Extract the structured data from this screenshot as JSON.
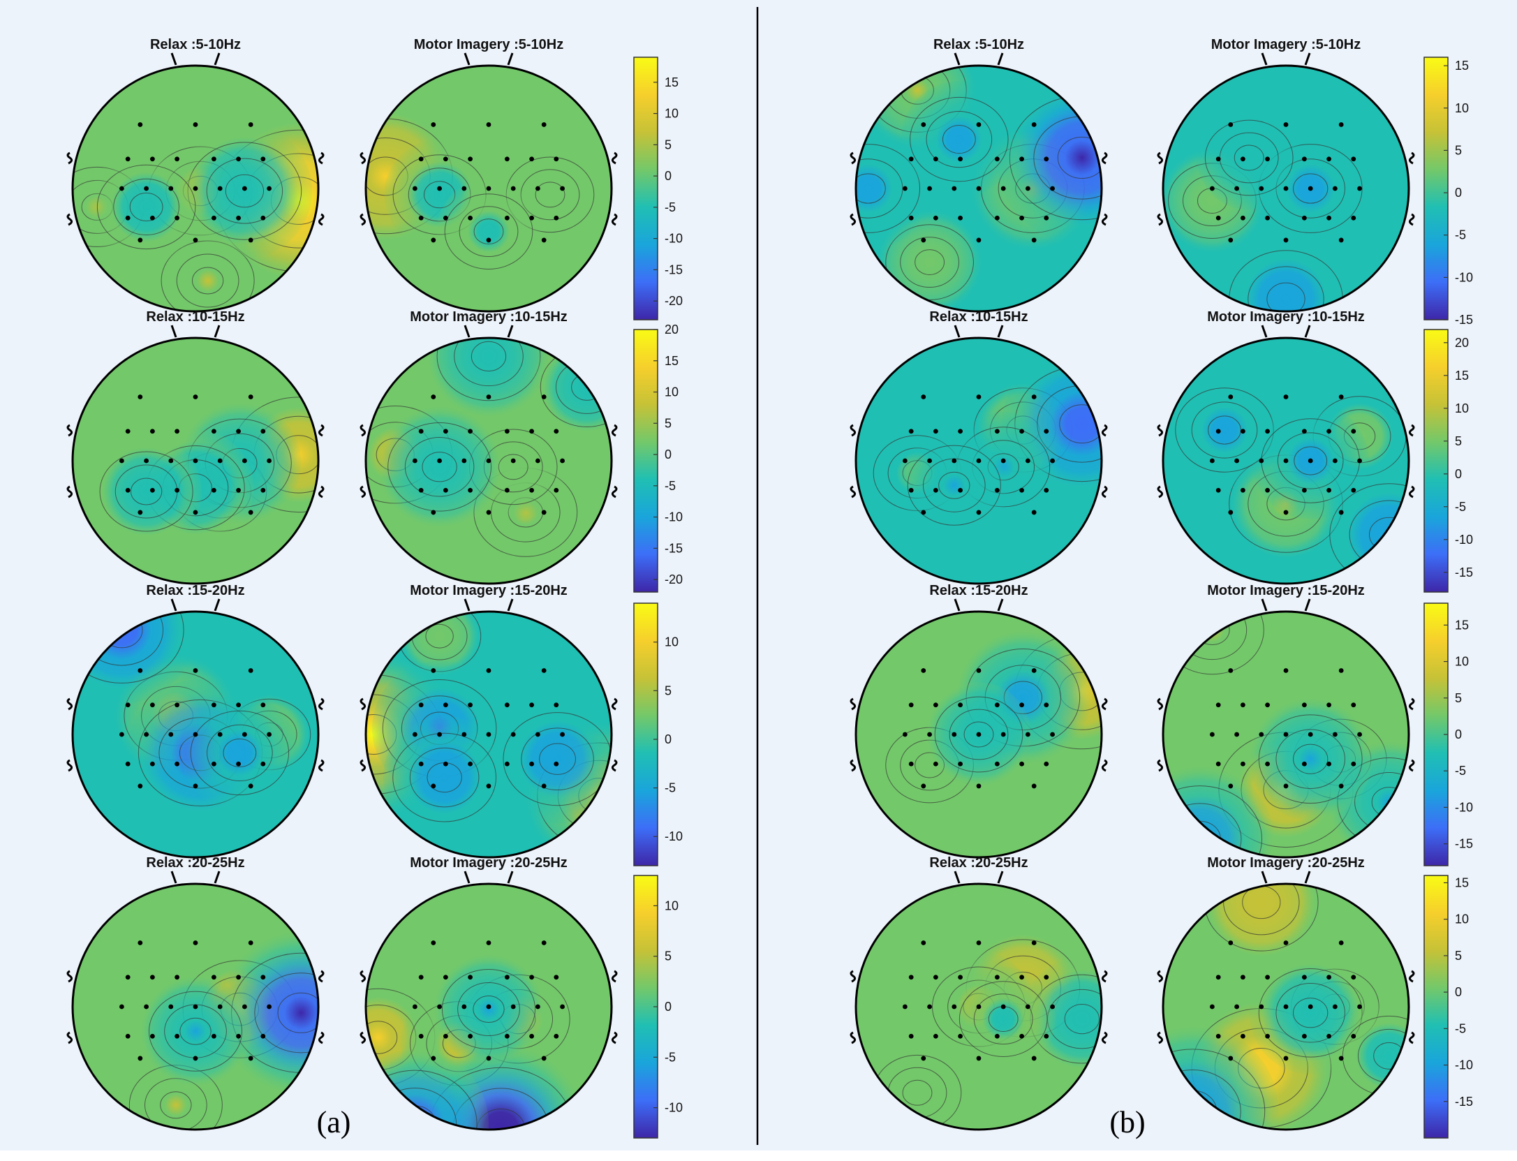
{
  "chart_data": {
    "type": "heatmap",
    "description_kind": "EEG scalp topographic maps",
    "panels": [
      {
        "label": "(a)",
        "rows": [
          {
            "band": "5-10Hz",
            "maps": [
              {
                "title": "Relax :5-10Hz",
                "hot": [
                  {
                    "u": 0.92,
                    "v": 0.1,
                    "val": 18
                  },
                  {
                    "u": 0.52,
                    "v": 0.02,
                    "val": 6
                  },
                  {
                    "u": 0.1,
                    "v": 0.15,
                    "val": 4
                  },
                  {
                    "u": 0.55,
                    "v": 0.75,
                    "val": 4
                  }
                ],
                "cold": [
                  {
                    "u": 0.7,
                    "v": 0.02,
                    "val": -8
                  },
                  {
                    "u": 0.3,
                    "v": 0.15,
                    "val": -5
                  }
                ]
              },
              {
                "title": "Motor Imagery :5-10Hz",
                "hot": [
                  {
                    "u": 0.08,
                    "v": -0.1,
                    "val": 12
                  },
                  {
                    "u": 0.75,
                    "v": 0.05,
                    "val": 3
                  }
                ],
                "cold": [
                  {
                    "u": 0.3,
                    "v": 0.05,
                    "val": -4
                  },
                  {
                    "u": 0.5,
                    "v": 0.35,
                    "val": -3
                  }
                ]
              }
            ],
            "colorbar": {
              "min": -23,
              "max": 19,
              "ticks": [
                15,
                10,
                5,
                0,
                -5,
                -10,
                -15,
                -20
              ]
            }
          },
          {
            "band": "10-15Hz",
            "maps": [
              {
                "title": "Relax :10-15Hz",
                "hot": [
                  {
                    "u": 0.92,
                    "v": -0.05,
                    "val": 12
                  },
                  {
                    "u": 0.6,
                    "v": 0.25,
                    "val": 4
                  }
                ],
                "cold": [
                  {
                    "u": 0.68,
                    "v": 0.02,
                    "val": -6
                  },
                  {
                    "u": 0.5,
                    "v": 0.22,
                    "val": -5
                  },
                  {
                    "u": 0.3,
                    "v": 0.25,
                    "val": -4
                  }
                ]
              },
              {
                "title": "Motor Imagery :10-15Hz",
                "hot": [
                  {
                    "u": 0.12,
                    "v": -0.05,
                    "val": 8
                  },
                  {
                    "u": 0.65,
                    "v": 0.42,
                    "val": 6
                  },
                  {
                    "u": 0.6,
                    "v": 0.05,
                    "val": 3
                  }
                ],
                "cold": [
                  {
                    "u": 0.3,
                    "v": 0.05,
                    "val": -6
                  },
                  {
                    "u": 0.5,
                    "v": -0.85,
                    "val": -6
                  },
                  {
                    "u": 0.9,
                    "v": -0.6,
                    "val": -4
                  }
                ]
              }
            ],
            "colorbar": {
              "min": -22,
              "max": 20,
              "ticks": [
                20,
                15,
                10,
                5,
                0,
                -5,
                -10,
                -15,
                -20
              ]
            }
          },
          {
            "band": "15-20Hz",
            "maps": [
              {
                "title": "Relax :15-20Hz",
                "hot": [
                  {
                    "u": 0.42,
                    "v": -0.15,
                    "val": 6
                  },
                  {
                    "u": 0.8,
                    "v": 0.0,
                    "val": 2
                  }
                ],
                "cold": [
                  {
                    "u": 0.2,
                    "v": -0.85,
                    "val": -10
                  },
                  {
                    "u": 0.52,
                    "v": 0.15,
                    "val": -10
                  },
                  {
                    "u": 0.68,
                    "v": 0.15,
                    "val": -5
                  }
                ]
              },
              {
                "title": "Motor Imagery :15-20Hz",
                "hot": [
                  {
                    "u": 0.03,
                    "v": 0.0,
                    "val": 13
                  },
                  {
                    "u": 0.95,
                    "v": 0.5,
                    "val": 10
                  },
                  {
                    "u": 0.3,
                    "v": -0.8,
                    "val": 2
                  }
                ],
                "cold": [
                  {
                    "u": 0.3,
                    "v": -0.05,
                    "val": -8
                  },
                  {
                    "u": 0.78,
                    "v": 0.2,
                    "val": -7
                  },
                  {
                    "u": 0.32,
                    "v": 0.35,
                    "val": -6
                  }
                ]
              }
            ],
            "colorbar": {
              "min": -13,
              "max": 14,
              "ticks": [
                10,
                5,
                0,
                -5,
                -10
              ]
            }
          },
          {
            "band": "20-25Hz",
            "maps": [
              {
                "title": "Relax :20-25Hz",
                "hot": [
                  {
                    "u": 0.68,
                    "v": 0.02,
                    "val": 8
                  },
                  {
                    "u": 0.42,
                    "v": 0.8,
                    "val": 4
                  }
                ],
                "cold": [
                  {
                    "u": 0.93,
                    "v": 0.05,
                    "val": -13
                  },
                  {
                    "u": 0.5,
                    "v": 0.2,
                    "val": -4
                  }
                ]
              },
              {
                "title": "Motor Imagery :20-25Hz",
                "hot": [
                  {
                    "u": 0.05,
                    "v": 0.25,
                    "val": 8
                  },
                  {
                    "u": 0.62,
                    "v": 0.1,
                    "val": 6
                  },
                  {
                    "u": 0.38,
                    "v": 0.3,
                    "val": 5
                  }
                ],
                "cold": [
                  {
                    "u": 0.55,
                    "v": 1.0,
                    "val": -14
                  },
                  {
                    "u": 0.2,
                    "v": 0.95,
                    "val": -10
                  },
                  {
                    "u": 0.5,
                    "v": 0.02,
                    "val": -4
                  }
                ]
              }
            ],
            "colorbar": {
              "min": -13,
              "max": 13,
              "ticks": [
                10,
                5,
                0,
                -5,
                -10
              ]
            }
          }
        ]
      },
      {
        "label": "(b)",
        "rows": [
          {
            "band": "5-10Hz",
            "maps": [
              {
                "title": "Relax :5-10Hz",
                "hot": [
                  {
                    "u": 0.25,
                    "v": -0.8,
                    "val": 5
                  },
                  {
                    "u": 0.72,
                    "v": 0.0,
                    "val": 6
                  },
                  {
                    "u": 0.3,
                    "v": 0.6,
                    "val": 3
                  }
                ],
                "cold": [
                  {
                    "u": 0.92,
                    "v": -0.25,
                    "val": -14
                  },
                  {
                    "u": 0.05,
                    "v": 0.0,
                    "val": -6
                  },
                  {
                    "u": 0.42,
                    "v": -0.4,
                    "val": -5
                  }
                ]
              },
              {
                "title": "Motor Imagery :5-10Hz",
                "hot": [
                  {
                    "u": 0.2,
                    "v": 0.1,
                    "val": 3
                  }
                ],
                "cold": [
                  {
                    "u": 0.6,
                    "v": 0.0,
                    "val": -6
                  },
                  {
                    "u": 0.5,
                    "v": 0.9,
                    "val": -8
                  },
                  {
                    "u": 0.35,
                    "v": -0.25,
                    "val": -3
                  }
                ]
              }
            ],
            "colorbar": {
              "min": -15,
              "max": 16,
              "ticks": [
                15,
                10,
                5,
                0,
                -5,
                -10,
                -15
              ]
            }
          },
          {
            "band": "10-15Hz",
            "maps": [
              {
                "title": "Relax :10-15Hz",
                "hot": [
                  {
                    "u": 0.68,
                    "v": -0.25,
                    "val": 5
                  },
                  {
                    "u": 0.25,
                    "v": 0.1,
                    "val": 3
                  }
                ],
                "cold": [
                  {
                    "u": 0.92,
                    "v": -0.3,
                    "val": -12
                  },
                  {
                    "u": 0.6,
                    "v": 0.05,
                    "val": -4
                  },
                  {
                    "u": 0.4,
                    "v": 0.2,
                    "val": -4
                  }
                ]
              },
              {
                "title": "Motor Imagery :10-15Hz",
                "hot": [
                  {
                    "u": 0.5,
                    "v": 0.35,
                    "val": 8
                  },
                  {
                    "u": 0.8,
                    "v": -0.2,
                    "val": 4
                  }
                ],
                "cold": [
                  {
                    "u": 0.25,
                    "v": -0.25,
                    "val": -5
                  },
                  {
                    "u": 0.6,
                    "v": 0.0,
                    "val": -5
                  },
                  {
                    "u": 0.92,
                    "v": 0.6,
                    "val": -9
                  }
                ]
              }
            ],
            "colorbar": {
              "min": -18,
              "max": 22,
              "ticks": [
                20,
                15,
                10,
                5,
                0,
                -5,
                -10,
                -15
              ]
            }
          },
          {
            "band": "15-20Hz",
            "maps": [
              {
                "title": "Relax :15-20Hz",
                "hot": [
                  {
                    "u": 0.92,
                    "v": -0.35,
                    "val": 12
                  },
                  {
                    "u": 0.3,
                    "v": 0.25,
                    "val": 3
                  }
                ],
                "cold": [
                  {
                    "u": 0.68,
                    "v": -0.3,
                    "val": -8
                  },
                  {
                    "u": 0.5,
                    "v": 0.0,
                    "val": -3
                  }
                ]
              },
              {
                "title": "Motor Imagery :15-20Hz",
                "hot": [
                  {
                    "u": 0.5,
                    "v": 0.45,
                    "val": 12
                  },
                  {
                    "u": 0.2,
                    "v": -0.85,
                    "val": 6
                  },
                  {
                    "u": 0.72,
                    "v": 0.2,
                    "val": 4
                  }
                ],
                "cold": [
                  {
                    "u": 0.15,
                    "v": 0.85,
                    "val": -10
                  },
                  {
                    "u": 0.92,
                    "v": 0.55,
                    "val": -6
                  },
                  {
                    "u": 0.6,
                    "v": 0.2,
                    "val": -6
                  }
                ]
              }
            ],
            "colorbar": {
              "min": -18,
              "max": 18,
              "ticks": [
                15,
                10,
                5,
                0,
                -5,
                -10,
                -15
              ]
            }
          },
          {
            "band": "20-25Hz",
            "maps": [
              {
                "title": "Relax :20-25Hz",
                "hot": [
                  {
                    "u": 0.68,
                    "v": -0.15,
                    "val": 8
                  },
                  {
                    "u": 0.5,
                    "v": 0.0,
                    "val": 4
                  },
                  {
                    "u": 0.25,
                    "v": 0.7,
                    "val": 3
                  }
                ],
                "cold": [
                  {
                    "u": 0.92,
                    "v": 0.1,
                    "val": -6
                  },
                  {
                    "u": 0.6,
                    "v": 0.1,
                    "val": -3
                  }
                ]
              },
              {
                "title": "Motor Imagery :20-25Hz",
                "hot": [
                  {
                    "u": 0.4,
                    "v": -0.85,
                    "val": 8
                  },
                  {
                    "u": 0.4,
                    "v": 0.5,
                    "val": 13
                  },
                  {
                    "u": 0.7,
                    "v": 0.0,
                    "val": 3
                  }
                ],
                "cold": [
                  {
                    "u": 0.12,
                    "v": 0.85,
                    "val": -14
                  },
                  {
                    "u": 0.6,
                    "v": 0.05,
                    "val": -6
                  },
                  {
                    "u": 0.92,
                    "v": 0.4,
                    "val": -4
                  }
                ]
              }
            ],
            "colorbar": {
              "min": -20,
              "max": 16,
              "ticks": [
                15,
                10,
                5,
                0,
                -5,
                -10,
                -15
              ]
            }
          }
        ]
      }
    ]
  },
  "colors": {
    "background": "#edf3fb",
    "divider": "#000000",
    "electrode": "#000000",
    "contour": "#333333",
    "colormap": [
      "#3e26a8",
      "#3d6ef7",
      "#1aa5db",
      "#20bfb3",
      "#73c86a",
      "#c6c237",
      "#f6cf2c",
      "#f9fb15"
    ]
  }
}
